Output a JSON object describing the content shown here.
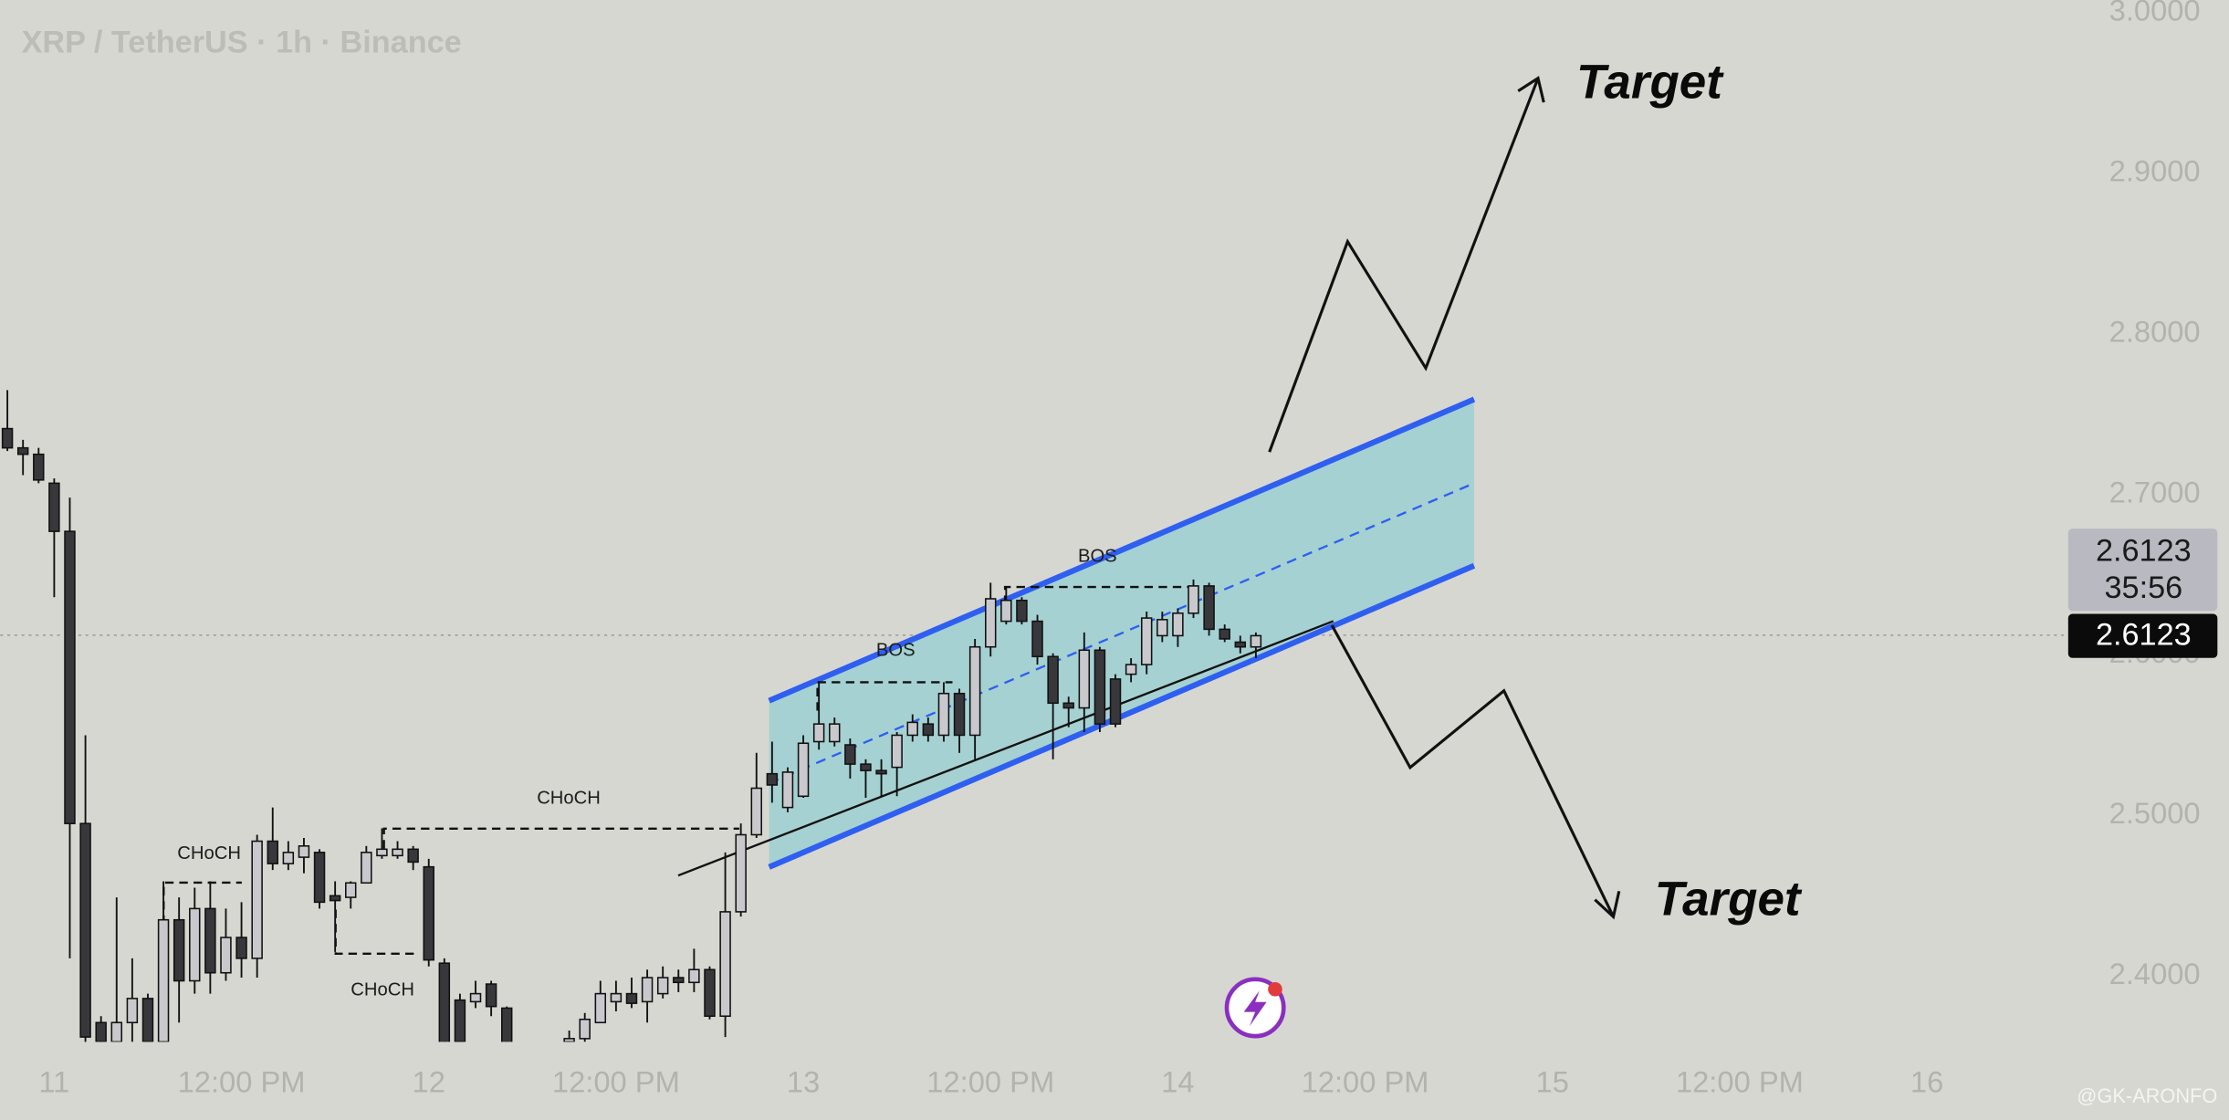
{
  "chart_data": {
    "type": "candlestick",
    "title": "XRP / TetherUS · 1h · Binance",
    "x": [
      -3,
      -2,
      -1,
      0,
      1,
      2,
      3,
      4,
      5,
      6,
      7,
      8,
      9,
      10,
      11,
      12,
      13,
      14,
      15,
      16,
      17,
      18,
      19,
      20,
      21,
      22,
      23,
      24,
      25,
      26,
      27,
      28,
      29,
      33,
      34,
      35,
      36,
      37,
      38,
      39,
      40,
      41,
      42,
      43,
      44,
      45,
      46,
      47,
      48,
      49,
      50,
      51,
      52,
      53,
      54,
      55,
      56,
      57,
      58,
      59,
      60,
      61,
      62,
      63,
      64,
      65,
      66,
      67,
      68,
      69,
      70,
      71,
      72,
      73,
      74,
      75,
      76,
      77
    ],
    "open": [
      2.741,
      2.729,
      2.725,
      2.707,
      2.677,
      2.495,
      2.371,
      2.359,
      2.371,
      2.386,
      2.359,
      2.435,
      2.397,
      2.442,
      2.402,
      2.424,
      2.411,
      2.484,
      2.47,
      2.474,
      2.477,
      2.45,
      2.449,
      2.458,
      2.475,
      2.475,
      2.479,
      2.468,
      2.408,
      2.385,
      2.384,
      2.395,
      2.38,
      2.359,
      2.361,
      2.371,
      2.384,
      2.389,
      2.384,
      2.389,
      2.399,
      2.396,
      2.404,
      2.375,
      2.44,
      2.488,
      2.526,
      2.505,
      2.512,
      2.546,
      2.546,
      2.544,
      2.532,
      2.528,
      2.53,
      2.55,
      2.557,
      2.55,
      2.576,
      2.55,
      2.605,
      2.621,
      2.634,
      2.621,
      2.599,
      2.57,
      2.567,
      2.603,
      2.585,
      2.588,
      2.594,
      2.612,
      2.612,
      2.626,
      2.643,
      2.616,
      2.608,
      2.605
    ],
    "high": [
      2.765,
      2.734,
      2.729,
      2.71,
      2.698,
      2.55,
      2.375,
      2.449,
      2.411,
      2.389,
      2.459,
      2.449,
      2.455,
      2.459,
      2.442,
      2.446,
      2.488,
      2.505,
      2.484,
      2.486,
      2.479,
      2.459,
      2.459,
      2.481,
      2.492,
      2.484,
      2.481,
      2.473,
      2.411,
      2.389,
      2.397,
      2.397,
      2.381,
      2.366,
      2.377,
      2.397,
      2.397,
      2.399,
      2.404,
      2.406,
      2.404,
      2.417,
      2.406,
      2.477,
      2.495,
      2.539,
      2.546,
      2.53,
      2.55,
      2.583,
      2.561,
      2.548,
      2.535,
      2.535,
      2.552,
      2.563,
      2.561,
      2.583,
      2.579,
      2.61,
      2.645,
      2.642,
      2.636,
      2.625,
      2.601,
      2.574,
      2.614,
      2.605,
      2.588,
      2.598,
      2.627,
      2.627,
      2.629,
      2.647,
      2.645,
      2.619,
      2.612,
      2.614
    ],
    "low": [
      2.727,
      2.712,
      2.707,
      2.636,
      2.411,
      2.345,
      2.335,
      2.353,
      2.359,
      2.353,
      2.358,
      2.371,
      2.389,
      2.389,
      2.397,
      2.399,
      2.399,
      2.466,
      2.466,
      2.464,
      2.442,
      2.415,
      2.442,
      2.458,
      2.473,
      2.473,
      2.466,
      2.406,
      2.35,
      2.35,
      2.38,
      2.375,
      2.34,
      2.358,
      2.359,
      2.371,
      2.378,
      2.38,
      2.371,
      2.386,
      2.39,
      2.39,
      2.373,
      2.362,
      2.437,
      2.486,
      2.508,
      2.502,
      2.511,
      2.541,
      2.543,
      2.523,
      2.511,
      2.512,
      2.512,
      2.546,
      2.546,
      2.546,
      2.539,
      2.535,
      2.599,
      2.619,
      2.619,
      2.594,
      2.535,
      2.555,
      2.552,
      2.552,
      2.555,
      2.583,
      2.588,
      2.608,
      2.605,
      2.623,
      2.612,
      2.608,
      2.601,
      2.598
    ],
    "close": [
      2.729,
      2.725,
      2.709,
      2.677,
      2.495,
      2.362,
      2.359,
      2.371,
      2.386,
      2.359,
      2.435,
      2.397,
      2.442,
      2.402,
      2.424,
      2.411,
      2.484,
      2.47,
      2.477,
      2.481,
      2.446,
      2.447,
      2.458,
      2.477,
      2.479,
      2.479,
      2.471,
      2.41,
      2.355,
      2.359,
      2.389,
      2.381,
      2.35,
      2.361,
      2.373,
      2.389,
      2.389,
      2.383,
      2.399,
      2.399,
      2.396,
      2.404,
      2.375,
      2.44,
      2.488,
      2.517,
      2.519,
      2.527,
      2.545,
      2.557,
      2.557,
      2.532,
      2.528,
      2.526,
      2.55,
      2.558,
      2.55,
      2.576,
      2.55,
      2.605,
      2.635,
      2.634,
      2.621,
      2.599,
      2.57,
      2.567,
      2.603,
      2.557,
      2.557,
      2.594,
      2.623,
      2.622,
      2.626,
      2.643,
      2.616,
      2.61,
      2.605,
      2.612
    ],
    "up_color": "#c9c9cd",
    "down_color": "#38383c",
    "xlim": [
      -3.46,
      129.05
    ],
    "xticks": [
      {
        "value": 0,
        "label": "11"
      },
      {
        "value": 12,
        "label": "12:00 PM"
      },
      {
        "value": 24,
        "label": "12"
      },
      {
        "value": 36,
        "label": "12:00 PM"
      },
      {
        "value": 48,
        "label": "13"
      },
      {
        "value": 60,
        "label": "12:00 PM"
      },
      {
        "value": 72,
        "label": "14"
      },
      {
        "value": 84,
        "label": "12:00 PM"
      },
      {
        "value": 96,
        "label": "15"
      },
      {
        "value": 108,
        "label": "12:00 PM"
      },
      {
        "value": 120,
        "label": "16"
      }
    ],
    "ylim": [
      2.359,
      3.008
    ],
    "yticks": [
      {
        "value": 3,
        "label": "3.0000"
      },
      {
        "value": 2.9,
        "label": "2.9000"
      },
      {
        "value": 2.8,
        "label": "2.8000"
      },
      {
        "value": 2.7,
        "label": "2.7000"
      },
      {
        "value": 2.6,
        "label": "2.6000"
      },
      {
        "value": 2.5,
        "label": "2.5000"
      },
      {
        "value": 2.4,
        "label": "2.4000"
      }
    ],
    "last_price": 2.6123,
    "countdown": "35:56",
    "annotations": [
      "CHoCH",
      "CHoCH",
      "CHoCH",
      "BOS",
      "BOS"
    ],
    "targets": [
      "Target",
      "Target"
    ],
    "watermark": "@GK-ARONFO"
  }
}
